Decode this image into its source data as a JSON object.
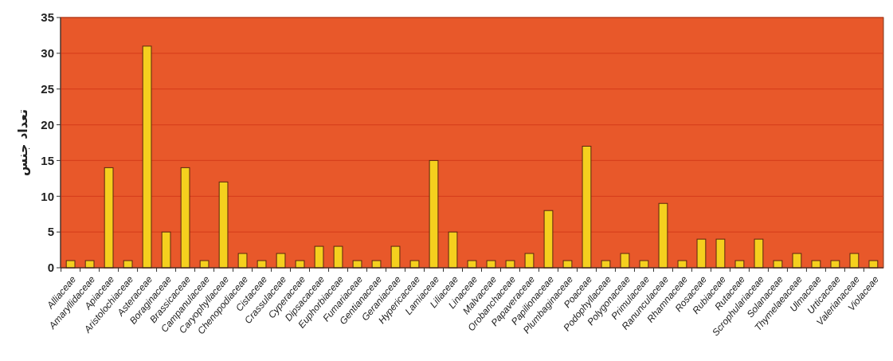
{
  "chart_data": {
    "type": "bar",
    "ylabel": "تعداد جنس",
    "categories": [
      "Alliaceae",
      "Amaryllidaceae",
      "Apiaceae",
      "Aristolochiaceae",
      "Asteraceae",
      "Boraginaceae",
      "Brassicaceae",
      "Campanulaceae",
      "Caryophyllaceae",
      "Chenopodiaceae",
      "Cistaceae",
      "Crassulaceae",
      "Cyperaceae",
      "Dipsacaceae",
      "Euphorbiaceae",
      "Fumariaceae",
      "Gentianaceae",
      "Geraniaceae",
      "Hypericaceae",
      "Lamiaceae",
      "Liliaceae",
      "Linaceae",
      "Malvaceae",
      "Orobanchaceae",
      "Papaveraceae",
      "Papilionaceae",
      "Plumbaginaceae",
      "Poaceae",
      "Podophyllaceae",
      "Polygonaceae",
      "Primulaceae",
      "Ranunculaceae",
      "Rhamnaceae",
      "Rosaceae",
      "Rubiaceae",
      "Rutaceae",
      "Scrophulariaceae",
      "Solanaceae",
      "Thymelaeaceae",
      "Ulmaceae",
      "Urticaceae",
      "Valerianaceae",
      "Violaceae"
    ],
    "values": [
      1,
      1,
      14,
      1,
      31,
      5,
      14,
      1,
      12,
      2,
      1,
      2,
      1,
      3,
      3,
      1,
      1,
      3,
      1,
      15,
      5,
      1,
      1,
      1,
      2,
      8,
      1,
      17,
      1,
      2,
      1,
      9,
      1,
      4,
      4,
      1,
      4,
      1,
      2,
      1,
      1,
      2,
      1
    ],
    "color": "#f5d01e",
    "ylim": [
      0,
      35
    ],
    "yticks": [
      0,
      5,
      10,
      15,
      20,
      25,
      30,
      35
    ],
    "grid": "y"
  }
}
